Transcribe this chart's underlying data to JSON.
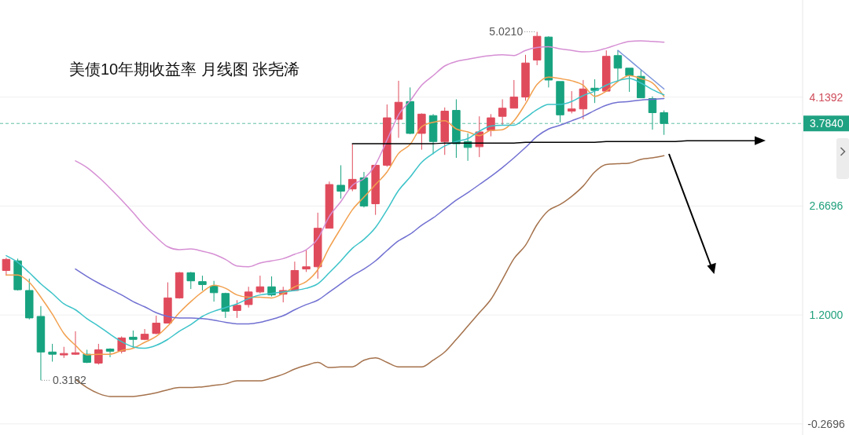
{
  "chart_data": {
    "type": "candlestick",
    "title": "美债10年期收益率 月线图 张尧浠",
    "categories": [
      null,
      null,
      null,
      null,
      null,
      null,
      null,
      null,
      null,
      null,
      null,
      null,
      null,
      null,
      null,
      null,
      null,
      null,
      null,
      null,
      null,
      null,
      null,
      null,
      null,
      null,
      null,
      null,
      null,
      null,
      null,
      null,
      null,
      null,
      null,
      null,
      null,
      null,
      null,
      null,
      null,
      null,
      null,
      null,
      null,
      null,
      null,
      null,
      null,
      null,
      null,
      null,
      null,
      null,
      null,
      null,
      null,
      null,
      null,
      null,
      null,
      null,
      null,
      null,
      null,
      null
    ],
    "ohlc": [
      [
        1.8,
        1.97,
        1.73,
        1.95
      ],
      [
        1.93,
        1.96,
        1.53,
        1.54
      ],
      [
        1.53,
        1.69,
        1.14,
        1.16
      ],
      [
        1.18,
        1.32,
        0.3182,
        0.7
      ],
      [
        0.7,
        0.81,
        0.57,
        0.67
      ],
      [
        0.66,
        0.77,
        0.62,
        0.68
      ],
      [
        0.67,
        0.98,
        0.66,
        0.69
      ],
      [
        0.67,
        0.73,
        0.55,
        0.56
      ],
      [
        0.55,
        0.81,
        0.53,
        0.73
      ],
      [
        0.74,
        0.75,
        0.63,
        0.71
      ],
      [
        0.71,
        0.91,
        0.68,
        0.89
      ],
      [
        0.9,
        0.99,
        0.75,
        0.87
      ],
      [
        0.87,
        1.01,
        0.86,
        0.94
      ],
      [
        0.95,
        1.19,
        0.94,
        1.09
      ],
      [
        1.09,
        1.64,
        1.09,
        1.43
      ],
      [
        1.43,
        1.78,
        1.42,
        1.77
      ],
      [
        1.77,
        1.78,
        1.55,
        1.66
      ],
      [
        1.65,
        1.73,
        1.53,
        1.61
      ],
      [
        1.59,
        1.66,
        1.38,
        1.5
      ],
      [
        1.49,
        1.5,
        1.16,
        1.25
      ],
      [
        1.26,
        1.4,
        1.16,
        1.33
      ],
      [
        1.34,
        1.58,
        1.3,
        1.51
      ],
      [
        1.51,
        1.73,
        1.49,
        1.58
      ],
      [
        1.58,
        1.72,
        1.45,
        1.47
      ],
      [
        1.48,
        1.58,
        1.37,
        1.53
      ],
      [
        1.53,
        1.92,
        1.53,
        1.8
      ],
      [
        1.82,
        2.08,
        1.78,
        1.85
      ],
      [
        1.85,
        2.58,
        1.69,
        2.37
      ],
      [
        2.37,
        3.0,
        2.37,
        2.96
      ],
      [
        2.95,
        3.22,
        2.77,
        2.87
      ],
      [
        2.9,
        3.51,
        2.87,
        3.03
      ],
      [
        3.05,
        3.13,
        2.65,
        2.67
      ],
      [
        2.7,
        3.22,
        2.55,
        3.22
      ],
      [
        3.22,
        4.04,
        3.2,
        3.86
      ],
      [
        3.84,
        4.36,
        3.59,
        4.07
      ],
      [
        4.08,
        4.27,
        3.64,
        3.65
      ],
      [
        3.65,
        3.92,
        3.43,
        3.91
      ],
      [
        3.89,
        3.91,
        3.37,
        3.54
      ],
      [
        3.54,
        4.0,
        3.36,
        3.95
      ],
      [
        3.96,
        4.11,
        3.32,
        3.51
      ],
      [
        3.54,
        3.65,
        3.28,
        3.46
      ],
      [
        3.47,
        3.88,
        3.33,
        3.67
      ],
      [
        3.69,
        3.91,
        3.61,
        3.86
      ],
      [
        3.88,
        4.11,
        3.76,
        3.99
      ],
      [
        3.99,
        4.37,
        3.99,
        4.14
      ],
      [
        4.14,
        4.71,
        4.09,
        4.6
      ],
      [
        4.64,
        5.021,
        4.57,
        4.96
      ],
      [
        4.95,
        4.96,
        4.27,
        4.37
      ],
      [
        4.35,
        4.35,
        3.8,
        3.9
      ],
      [
        3.95,
        4.22,
        3.92,
        3.98
      ],
      [
        3.98,
        4.37,
        3.84,
        4.25
      ],
      [
        4.26,
        4.38,
        4.06,
        4.23
      ],
      [
        4.22,
        4.77,
        4.21,
        4.69
      ],
      [
        4.7,
        4.77,
        4.35,
        4.53
      ],
      [
        4.53,
        4.53,
        4.21,
        4.43
      ],
      [
        4.42,
        4.51,
        4.13,
        4.13
      ],
      [
        4.12,
        4.15,
        3.7,
        3.93
      ],
      [
        3.93,
        3.96,
        3.63,
        3.784
      ],
      null,
      null,
      null,
      null,
      null,
      null,
      null,
      null
    ],
    "colors": [
      "#e04b5c",
      "#17a37f",
      "#17a37f",
      "#17a37f",
      "#17a37f",
      "#e04b5c",
      "#e04b5c",
      "#17a37f",
      "#e04b5c",
      "#17a37f",
      "#e04b5c",
      "#17a37f",
      "#e04b5c",
      "#e04b5c",
      "#e04b5c",
      "#e04b5c",
      "#17a37f",
      "#17a37f",
      "#17a37f",
      "#17a37f",
      "#e04b5c",
      "#e04b5c",
      "#e04b5c",
      "#17a37f",
      "#e04b5c",
      "#e04b5c",
      "#e04b5c",
      "#e04b5c",
      "#e04b5c",
      "#17a37f",
      "#e04b5c",
      "#17a37f",
      "#e04b5c",
      "#e04b5c",
      "#e04b5c",
      "#17a37f",
      "#e04b5c",
      "#17a37f",
      "#e04b5c",
      "#17a37f",
      "#17a37f",
      "#e04b5c",
      "#e04b5c",
      "#e04b5c",
      "#e04b5c",
      "#e04b5c",
      "#e04b5c",
      "#17a37f",
      "#17a37f",
      "#e04b5c",
      "#e04b5c",
      "#17a37f",
      "#e04b5c",
      "#17a37f",
      "#17a37f",
      "#17a37f",
      "#17a37f",
      "#17a37f",
      null,
      null,
      null,
      null,
      null,
      null,
      null,
      null
    ],
    "series": [
      {
        "type": "line",
        "color": "#f2a04e",
        "values": [
          1.74,
          1.74,
          1.64,
          1.44,
          1.21,
          0.95,
          0.79,
          0.66,
          0.67,
          0.67,
          0.72,
          0.75,
          0.83,
          0.91,
          1.05,
          1.23,
          1.38,
          1.51,
          1.6,
          1.56,
          1.47,
          1.44,
          1.44,
          1.43,
          1.49,
          1.58,
          1.65,
          1.81,
          2.11,
          2.37,
          2.62,
          2.79,
          2.96,
          3.13,
          3.38,
          3.5,
          3.74,
          3.8,
          3.82,
          3.71,
          3.67,
          3.62,
          3.69,
          3.7,
          3.82,
          4.05,
          4.31,
          4.41,
          4.39,
          4.36,
          4.3,
          4.15,
          4.22,
          4.35,
          4.43,
          4.39,
          4.33,
          4.15,
          null,
          null,
          null,
          null,
          null,
          null,
          null,
          null
        ]
      },
      {
        "type": "line",
        "color": "#3cc3c9",
        "values": [
          2.0,
          1.91,
          1.77,
          1.62,
          1.49,
          1.35,
          1.27,
          1.15,
          1.05,
          0.94,
          0.84,
          0.77,
          0.75,
          0.79,
          0.87,
          0.98,
          1.07,
          1.18,
          1.25,
          1.3,
          1.35,
          1.42,
          1.47,
          1.49,
          1.51,
          1.53,
          1.56,
          1.62,
          1.77,
          1.93,
          2.1,
          2.22,
          2.38,
          2.62,
          2.88,
          3.06,
          3.26,
          3.38,
          3.48,
          3.54,
          3.58,
          3.68,
          3.75,
          3.76,
          3.76,
          3.86,
          3.97,
          4.04,
          4.04,
          4.08,
          4.16,
          4.22,
          4.3,
          4.36,
          4.39,
          4.33,
          4.24,
          4.17,
          null,
          null,
          null,
          null,
          null,
          null,
          null,
          null
        ]
      },
      {
        "type": "line",
        "color": "#7170d2",
        "values": [
          null,
          null,
          null,
          null,
          null,
          null,
          1.82,
          1.72,
          1.63,
          1.55,
          1.47,
          1.38,
          1.31,
          1.23,
          1.18,
          1.16,
          1.16,
          1.15,
          1.13,
          1.1,
          1.08,
          1.08,
          1.1,
          1.14,
          1.19,
          1.27,
          1.34,
          1.4,
          1.51,
          1.62,
          1.73,
          1.82,
          1.93,
          2.07,
          2.2,
          2.29,
          2.41,
          2.51,
          2.63,
          2.75,
          2.85,
          2.96,
          3.07,
          3.19,
          3.32,
          3.46,
          3.61,
          3.71,
          3.76,
          3.82,
          3.88,
          3.96,
          4.03,
          4.07,
          4.08,
          4.1,
          4.11,
          4.12,
          null,
          null,
          null,
          null,
          null,
          null,
          null,
          null
        ]
      },
      {
        "type": "line",
        "color": "#d68fd4",
        "values": [
          null,
          null,
          null,
          null,
          null,
          null,
          3.28,
          3.19,
          3.06,
          2.91,
          2.75,
          2.58,
          2.4,
          2.25,
          2.12,
          2.08,
          2.09,
          2.06,
          2.02,
          1.95,
          1.86,
          1.85,
          1.9,
          1.93,
          1.96,
          2.02,
          2.08,
          2.23,
          2.53,
          2.73,
          2.95,
          3.04,
          3.23,
          3.56,
          3.9,
          4.09,
          4.3,
          4.43,
          4.56,
          4.62,
          4.65,
          4.68,
          4.7,
          4.71,
          4.7,
          4.77,
          4.81,
          4.82,
          4.79,
          4.77,
          4.75,
          4.76,
          4.8,
          4.85,
          4.89,
          4.9,
          4.89,
          4.88,
          null,
          null,
          null,
          null,
          null,
          null,
          null,
          null
        ]
      },
      {
        "type": "line",
        "color": "#a5724c",
        "values": [
          null,
          null,
          null,
          null,
          null,
          null,
          0.33,
          0.22,
          0.14,
          0.1,
          0.1,
          0.1,
          0.12,
          0.15,
          0.19,
          0.22,
          0.22,
          0.23,
          0.25,
          0.27,
          0.31,
          0.31,
          0.31,
          0.35,
          0.4,
          0.47,
          0.52,
          0.56,
          0.49,
          0.5,
          0.5,
          0.59,
          0.62,
          0.56,
          0.5,
          0.5,
          0.5,
          0.59,
          0.7,
          0.87,
          1.05,
          1.23,
          1.41,
          1.68,
          1.96,
          2.14,
          2.42,
          2.61,
          2.69,
          2.8,
          2.94,
          3.13,
          3.23,
          3.24,
          3.25,
          3.3,
          3.32,
          3.35,
          null,
          null,
          null,
          null,
          null,
          null,
          null,
          null
        ]
      },
      {
        "type": "line",
        "color": "#7b94db",
        "values": [
          null,
          null,
          null,
          null,
          null,
          null,
          null,
          null,
          null,
          null,
          null,
          null,
          null,
          null,
          null,
          null,
          null,
          null,
          null,
          null,
          null,
          null,
          null,
          null,
          null,
          null,
          null,
          null,
          null,
          null,
          null,
          null,
          null,
          null,
          null,
          null,
          null,
          null,
          null,
          null,
          null,
          null,
          null,
          null,
          null,
          null,
          null,
          null,
          null,
          null,
          null,
          null,
          null,
          4.77,
          4.64,
          4.51,
          4.38,
          4.25,
          null,
          null,
          null,
          null,
          null,
          null,
          null,
          null
        ]
      },
      {
        "type": "line",
        "color": "#000000",
        "values": [
          null,
          null,
          null,
          null,
          null,
          null,
          null,
          null,
          null,
          null,
          null,
          null,
          null,
          null,
          null,
          null,
          null,
          null,
          null,
          null,
          null,
          null,
          null,
          null,
          null,
          null,
          null,
          null,
          null,
          null,
          3.51,
          3.51,
          3.51,
          3.51,
          3.51,
          3.51,
          3.51,
          3.51,
          3.52,
          3.52,
          3.52,
          3.52,
          3.52,
          3.52,
          3.52,
          3.53,
          3.53,
          3.53,
          3.53,
          3.53,
          3.53,
          3.53,
          3.54,
          3.54,
          3.54,
          3.54,
          3.54,
          3.54,
          3.54,
          3.55,
          3.55,
          3.55,
          3.55,
          3.55,
          3.55,
          3.55
        ]
      }
    ],
    "ylim": [
      -0.42,
      5.45
    ],
    "yticks": [
      4.1392,
      2.6696,
      {
        "value": 1.2,
        "label": "1.2000"
      },
      -0.2696
    ],
    "grid": "y",
    "tick_labels": "y",
    "ref_lines": [
      {
        "axis": "y",
        "value": 3.784,
        "label": "3.7840",
        "color": "#1fa282",
        "line_style": "dashed"
      }
    ],
    "annotations": [
      "5.0210",
      "0.3182"
    ]
  }
}
